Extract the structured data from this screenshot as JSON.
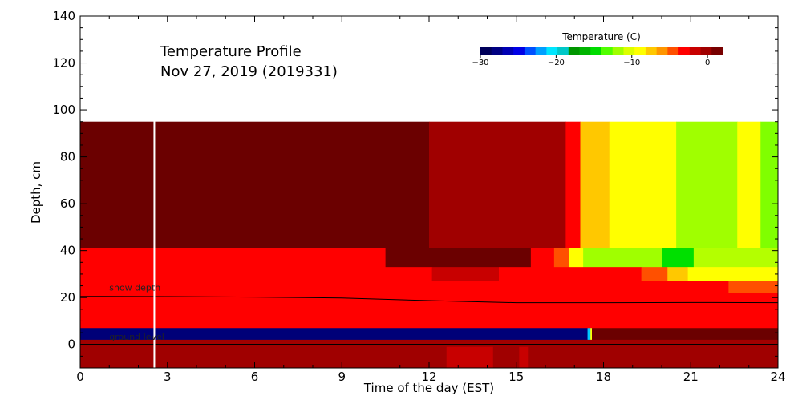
{
  "chart_data": {
    "type": "heatmap",
    "title_line1": "Temperature Profile",
    "title_line2": "Nov 27, 2019 (2019331)",
    "xlabel": "Time of the day (EST)",
    "ylabel": "Depth, cm",
    "xlim": [
      0,
      24
    ],
    "ylim": [
      -10,
      140
    ],
    "x_ticks": [
      0,
      3,
      6,
      9,
      12,
      15,
      18,
      21,
      24
    ],
    "y_ticks": [
      0,
      20,
      40,
      60,
      80,
      100,
      120,
      140
    ],
    "colorbar": {
      "title": "Temperature (C)",
      "range": [
        -30,
        2
      ],
      "ticks": [
        {
          "value": -30,
          "label": "−30"
        },
        {
          "value": -20,
          "label": "−20"
        },
        {
          "value": -10,
          "label": "−10"
        },
        {
          "value": 0,
          "label": "0"
        }
      ],
      "colors": [
        "#00005a",
        "#000082",
        "#0000b4",
        "#0000e6",
        "#0050ff",
        "#00a0ff",
        "#00e6ff",
        "#00c8c8",
        "#009600",
        "#00b400",
        "#00dc00",
        "#50ff00",
        "#a0ff00",
        "#dcff00",
        "#ffff00",
        "#ffc800",
        "#ff9600",
        "#ff5000",
        "#ff0000",
        "#c80000",
        "#a00000",
        "#780000"
      ]
    },
    "annotations": [
      {
        "label": "snow depth",
        "x": 1.0,
        "y": 23
      },
      {
        "label": "ground level",
        "x": 1.0,
        "y": 2
      }
    ],
    "snow_depth_line": {
      "x": [
        0,
        3,
        6,
        9,
        12,
        15,
        18,
        21,
        24
      ],
      "y": [
        20.5,
        20.4,
        20.2,
        19.8,
        18.7,
        17.8,
        17.8,
        17.9,
        17.8
      ]
    },
    "ground_level": 0,
    "marker_line_x": 2.55,
    "bands": [
      {
        "y0": 41,
        "y1": 95,
        "segments": [
          [
            0,
            12.0,
            "#6b0000"
          ],
          [
            12.0,
            16.7,
            "#a00000"
          ],
          [
            16.7,
            17.2,
            "#ff0000"
          ],
          [
            17.2,
            18.2,
            "#ffc800"
          ],
          [
            18.2,
            20.5,
            "#ffff00"
          ],
          [
            20.5,
            22.6,
            "#a0ff00"
          ],
          [
            22.6,
            23.4,
            "#ffff00"
          ],
          [
            23.4,
            24,
            "#80ff00"
          ]
        ]
      },
      {
        "y0": 33,
        "y1": 41,
        "segments": [
          [
            0,
            10.5,
            "#ff0000"
          ],
          [
            10.5,
            15.5,
            "#6b0000"
          ],
          [
            15.5,
            16.3,
            "#ff0000"
          ],
          [
            16.3,
            16.8,
            "#ff5000"
          ],
          [
            16.8,
            17.3,
            "#ffff00"
          ],
          [
            17.3,
            20.0,
            "#a0ff00"
          ],
          [
            20.0,
            21.1,
            "#00e000"
          ],
          [
            21.1,
            24,
            "#b4ff00"
          ]
        ]
      },
      {
        "y0": 27,
        "y1": 33,
        "segments": [
          [
            0,
            12.1,
            "#ff0000"
          ],
          [
            12.1,
            14.4,
            "#c80000"
          ],
          [
            14.4,
            19.3,
            "#ff0000"
          ],
          [
            19.3,
            20.2,
            "#ff5000"
          ],
          [
            20.2,
            20.9,
            "#ffc800"
          ],
          [
            20.9,
            24,
            "#ffff00"
          ]
        ]
      },
      {
        "y0": 22,
        "y1": 27,
        "segments": [
          [
            0,
            22.3,
            "#ff0000"
          ],
          [
            22.3,
            24,
            "#ff5000"
          ]
        ]
      },
      {
        "y0": 7,
        "y1": 22,
        "segments": [
          [
            0,
            24,
            "#ff0000"
          ]
        ]
      },
      {
        "y0": 2,
        "y1": 7,
        "segments": [
          [
            0,
            17.45,
            "#000078"
          ],
          [
            17.45,
            17.55,
            "#00c8ff"
          ],
          [
            17.55,
            17.6,
            "#ffff00"
          ],
          [
            17.6,
            24,
            "#6b0000"
          ]
        ]
      },
      {
        "y0": -1,
        "y1": 2,
        "segments": [
          [
            0,
            24,
            "#a00000"
          ]
        ]
      },
      {
        "y0": -10,
        "y1": -1,
        "segments": [
          [
            0,
            12.6,
            "#a00000"
          ],
          [
            12.6,
            14.2,
            "#c80000"
          ],
          [
            14.2,
            15.1,
            "#a00000"
          ],
          [
            15.1,
            15.4,
            "#c80000"
          ],
          [
            15.4,
            24,
            "#a00000"
          ]
        ]
      }
    ]
  }
}
